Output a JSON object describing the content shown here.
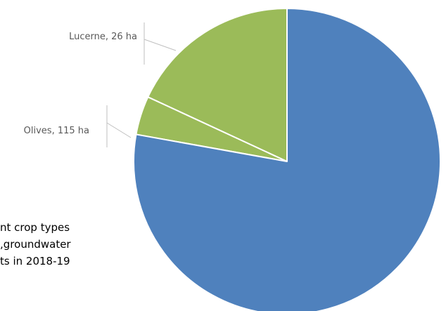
{
  "caption": {
    "lines": [
      "nt crop types",
      "groundwater,",
      "ts in 2018-19"
    ]
  },
  "chart_data": {
    "type": "pie",
    "title": "",
    "unit": "ha",
    "start_angle_deg": 0,
    "direction": "counterclockwise",
    "slices": [
      {
        "name": "Olives",
        "value": 115,
        "label": "Olives, 115 ha",
        "color": "#9bbb59"
      },
      {
        "name": "Lucerne",
        "value": 26,
        "label": "Lucerne, 26 ha",
        "color": "#9bbb59"
      },
      {
        "name": "",
        "value": 495,
        "label": "",
        "color": "#4f81bd"
      }
    ]
  }
}
